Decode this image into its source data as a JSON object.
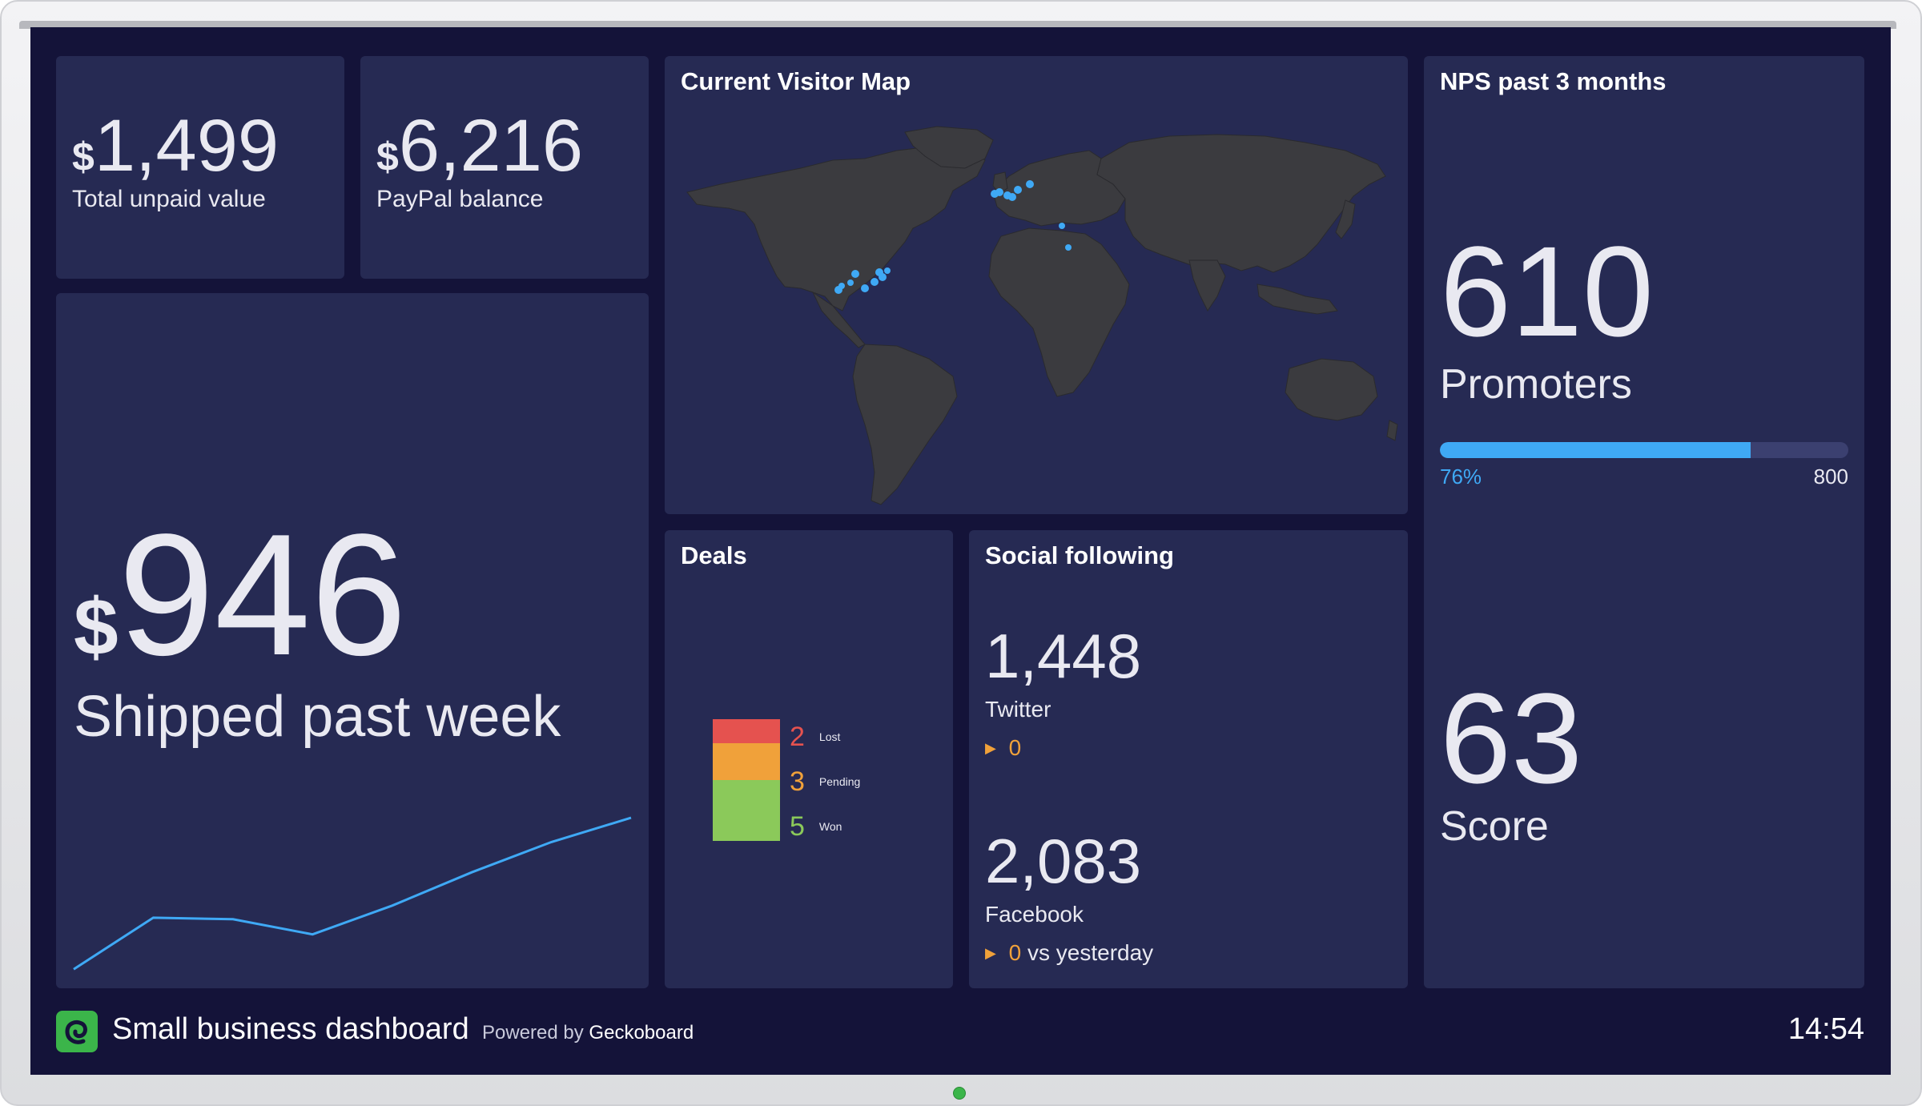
{
  "dashboard": {
    "title": "Small business dashboard",
    "powered_by": "Powered by",
    "brand": "Geckoboard",
    "time": "14:54"
  },
  "unpaid": {
    "currency": "$",
    "value": "1,499",
    "label": "Total unpaid value"
  },
  "paypal": {
    "currency": "$",
    "value": "6,216",
    "label": "PayPal balance"
  },
  "shipped": {
    "currency": "$",
    "value": "946",
    "label": "Shipped past week",
    "trend": [
      2,
      36,
      35,
      25,
      44,
      66,
      86,
      102
    ]
  },
  "visitor_map": {
    "title": "Current Visitor Map"
  },
  "deals": {
    "title": "Deals",
    "segments": [
      {
        "count": 2,
        "label": "Lost",
        "color": "#e5524f"
      },
      {
        "count": 3,
        "label": "Pending",
        "color": "#f0a13a"
      },
      {
        "count": 5,
        "label": "Won",
        "color": "#8bc95a"
      }
    ]
  },
  "social": {
    "title": "Social following",
    "twitter": {
      "value": "1,448",
      "label": "Twitter",
      "change": "0"
    },
    "facebook": {
      "value": "2,083",
      "label": "Facebook",
      "change": "0",
      "suffix": "vs yesterday"
    }
  },
  "nps": {
    "title": "NPS past 3 months",
    "promoters_value": "610",
    "promoters_label": "Promoters",
    "progress_percent": 76,
    "progress_label": "76%",
    "progress_max": "800",
    "score_value": "63",
    "score_label": "Score"
  },
  "colors": {
    "accent": "#3fa9f5",
    "panel": "#262a53",
    "background": "#141339",
    "change_arrow": "#f0a13a"
  }
}
